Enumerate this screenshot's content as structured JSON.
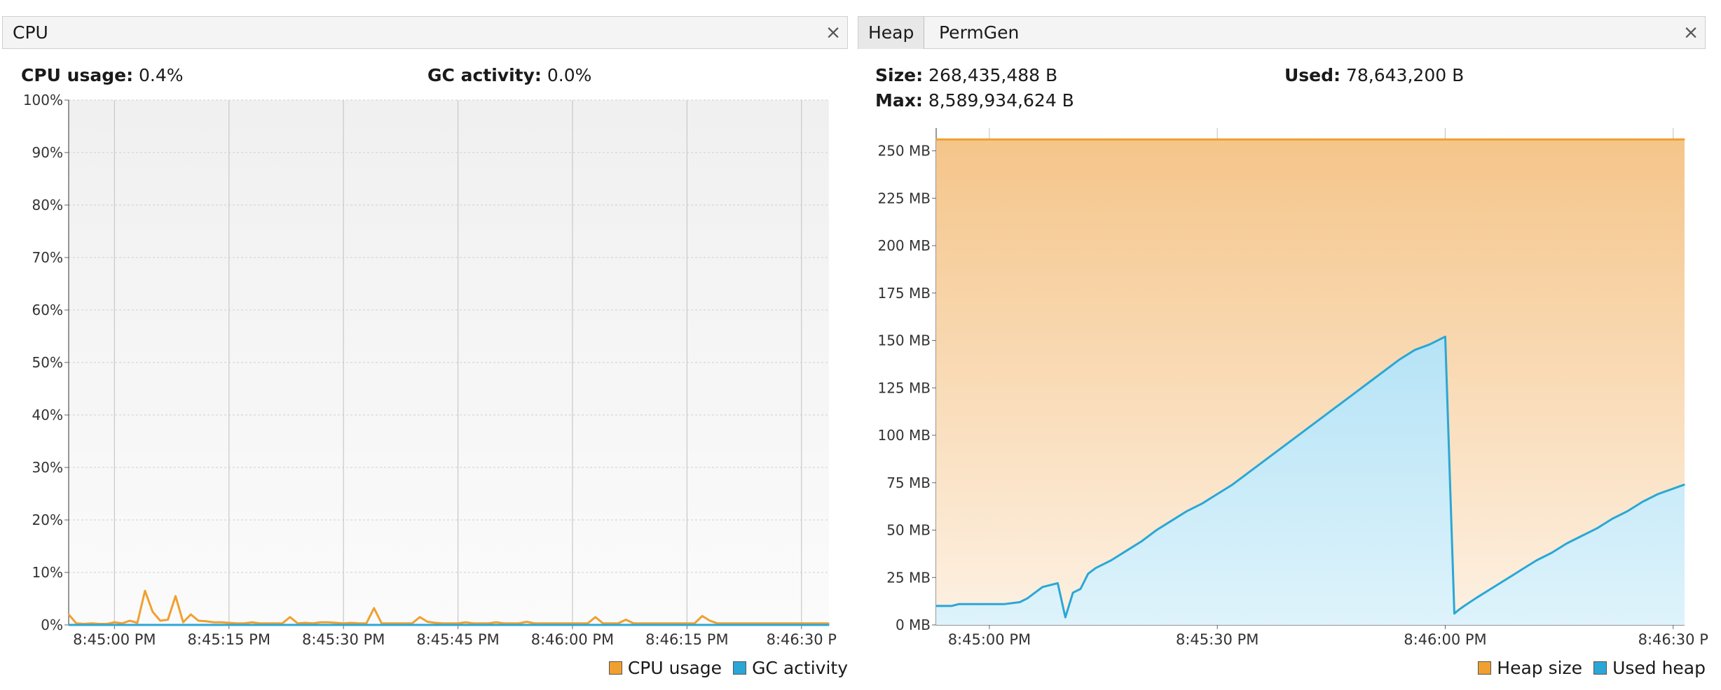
{
  "cpu_panel": {
    "tabs": [
      {
        "label": "CPU"
      }
    ],
    "close_label": "×",
    "stats": {
      "cpu_usage_label": "CPU usage:",
      "cpu_usage_value": "0.4%",
      "gc_activity_label": "GC activity:",
      "gc_activity_value": "0.0%"
    },
    "legend": [
      {
        "label": "CPU usage",
        "color": "#f0a030"
      },
      {
        "label": "GC activity",
        "color": "#2aa7d6"
      }
    ]
  },
  "heap_panel": {
    "tabs": [
      {
        "label": "Heap"
      },
      {
        "label": "PermGen"
      }
    ],
    "close_label": "×",
    "stats": {
      "size_label": "Size:",
      "size_value": "268,435,488 B",
      "used_label": "Used:",
      "used_value": "78,643,200 B",
      "max_label": "Max:",
      "max_value": "8,589,934,624 B"
    },
    "legend": [
      {
        "label": "Heap size",
        "color": "#f0a030"
      },
      {
        "label": "Used heap",
        "color": "#2aa7d6"
      }
    ]
  },
  "chart_data": [
    {
      "type": "line",
      "y_ticks": [
        "0%",
        "10%",
        "20%",
        "30%",
        "40%",
        "50%",
        "60%",
        "70%",
        "80%",
        "90%",
        "100%"
      ],
      "ylim": [
        0,
        100
      ],
      "x_ticks": [
        "8:45:00 PM",
        "8:45:15 PM",
        "8:45:30 PM",
        "8:45:45 PM",
        "8:46:00 PM",
        "8:46:15 PM",
        "8:46:30 P"
      ],
      "x_tick_seconds": [
        5,
        20,
        35,
        50,
        65,
        80,
        95
      ],
      "xlim_seconds": [
        -1,
        98.6
      ],
      "grid": true,
      "legend_position": "bottom-right",
      "series": [
        {
          "name": "CPU usage",
          "color": "#f0a030",
          "x": [
            -1,
            0,
            1,
            2,
            3,
            4,
            5,
            6,
            7,
            8,
            9,
            10,
            11,
            12,
            13,
            14,
            15,
            16,
            17,
            18,
            19,
            20,
            21,
            22,
            23,
            24,
            25,
            26,
            27,
            28,
            29,
            30,
            31,
            32,
            33,
            34,
            35,
            36,
            37,
            38,
            39,
            40,
            41,
            42,
            43,
            44,
            45,
            46,
            47,
            48,
            49,
            50,
            51,
            52,
            53,
            54,
            55,
            56,
            57,
            58,
            59,
            60,
            61,
            62,
            63,
            64,
            65,
            66,
            67,
            68,
            69,
            70,
            71,
            72,
            73,
            74,
            75,
            76,
            77,
            78,
            79,
            80,
            81,
            82,
            83,
            84,
            85,
            86,
            87,
            88,
            89,
            90,
            91,
            92,
            93,
            94,
            95,
            96,
            97,
            98.6
          ],
          "values": [
            2,
            0.3,
            0.2,
            0.3,
            0.2,
            0.2,
            0.5,
            0.3,
            0.8,
            0.4,
            6.5,
            2.5,
            0.8,
            1,
            5.5,
            0.5,
            2,
            0.8,
            0.7,
            0.5,
            0.5,
            0.4,
            0.3,
            0.3,
            0.5,
            0.3,
            0.3,
            0.3,
            0.3,
            1.5,
            0.3,
            0.4,
            0.3,
            0.5,
            0.5,
            0.4,
            0.3,
            0.4,
            0.3,
            0.3,
            3.2,
            0.3,
            0.3,
            0.3,
            0.3,
            0.3,
            1.5,
            0.6,
            0.4,
            0.3,
            0.3,
            0.3,
            0.5,
            0.3,
            0.3,
            0.3,
            0.5,
            0.3,
            0.3,
            0.3,
            0.6,
            0.3,
            0.3,
            0.3,
            0.3,
            0.3,
            0.3,
            0.3,
            0.3,
            1.5,
            0.3,
            0.3,
            0.3,
            1.0,
            0.3,
            0.3,
            0.3,
            0.3,
            0.3,
            0.3,
            0.3,
            0.3,
            0.3,
            1.7,
            0.8,
            0.3,
            0.3,
            0.3,
            0.3,
            0.3,
            0.3,
            0.3,
            0.3,
            0.3,
            0.3,
            0.3,
            0.3,
            0.3,
            0.3,
            0.3
          ]
        },
        {
          "name": "GC activity",
          "color": "#2aa7d6",
          "x": [
            -1,
            98.6
          ],
          "values": [
            0,
            0
          ]
        }
      ]
    },
    {
      "type": "area",
      "y_ticks": [
        "0 MB",
        "25 MB",
        "50 MB",
        "75 MB",
        "100 MB",
        "125 MB",
        "150 MB",
        "175 MB",
        "200 MB",
        "225 MB",
        "250 MB"
      ],
      "ylim": [
        0,
        262
      ],
      "x_ticks": [
        "8:45:00 PM",
        "8:45:30 PM",
        "8:46:00 PM",
        "8:46:30 P"
      ],
      "x_tick_seconds": [
        5,
        35,
        65,
        95
      ],
      "xlim_seconds": [
        -2,
        96.5
      ],
      "grid": true,
      "legend_position": "bottom-right",
      "series": [
        {
          "name": "Heap size",
          "color": "#f0a030",
          "x": [
            -2,
            96.5
          ],
          "values": [
            256,
            256
          ]
        },
        {
          "name": "Used heap",
          "color": "#2aa7d6",
          "x": [
            -2,
            0,
            1,
            3,
            5,
            7,
            9,
            10,
            12,
            14,
            15,
            16,
            17,
            18,
            19,
            20,
            21,
            23,
            25,
            27,
            29,
            31,
            33,
            35,
            37,
            39,
            41,
            43,
            45,
            47,
            49,
            51,
            53,
            55,
            57,
            59,
            61,
            63,
            65,
            66.2,
            66.8,
            67.5,
            69,
            71,
            73,
            75,
            77,
            79,
            81,
            83,
            85,
            87,
            89,
            91,
            93,
            96.5
          ],
          "values": [
            10,
            10,
            11,
            11,
            11,
            11,
            12,
            14,
            20,
            22,
            4,
            17,
            19,
            27,
            30,
            32,
            34,
            39,
            44,
            50,
            55,
            60,
            64,
            69,
            74,
            80,
            86,
            92,
            98,
            104,
            110,
            116,
            122,
            128,
            134,
            140,
            145,
            148,
            152,
            6,
            8,
            10,
            14,
            19,
            24,
            29,
            34,
            38,
            43,
            47,
            51,
            56,
            60,
            65,
            69,
            74
          ]
        }
      ]
    }
  ]
}
